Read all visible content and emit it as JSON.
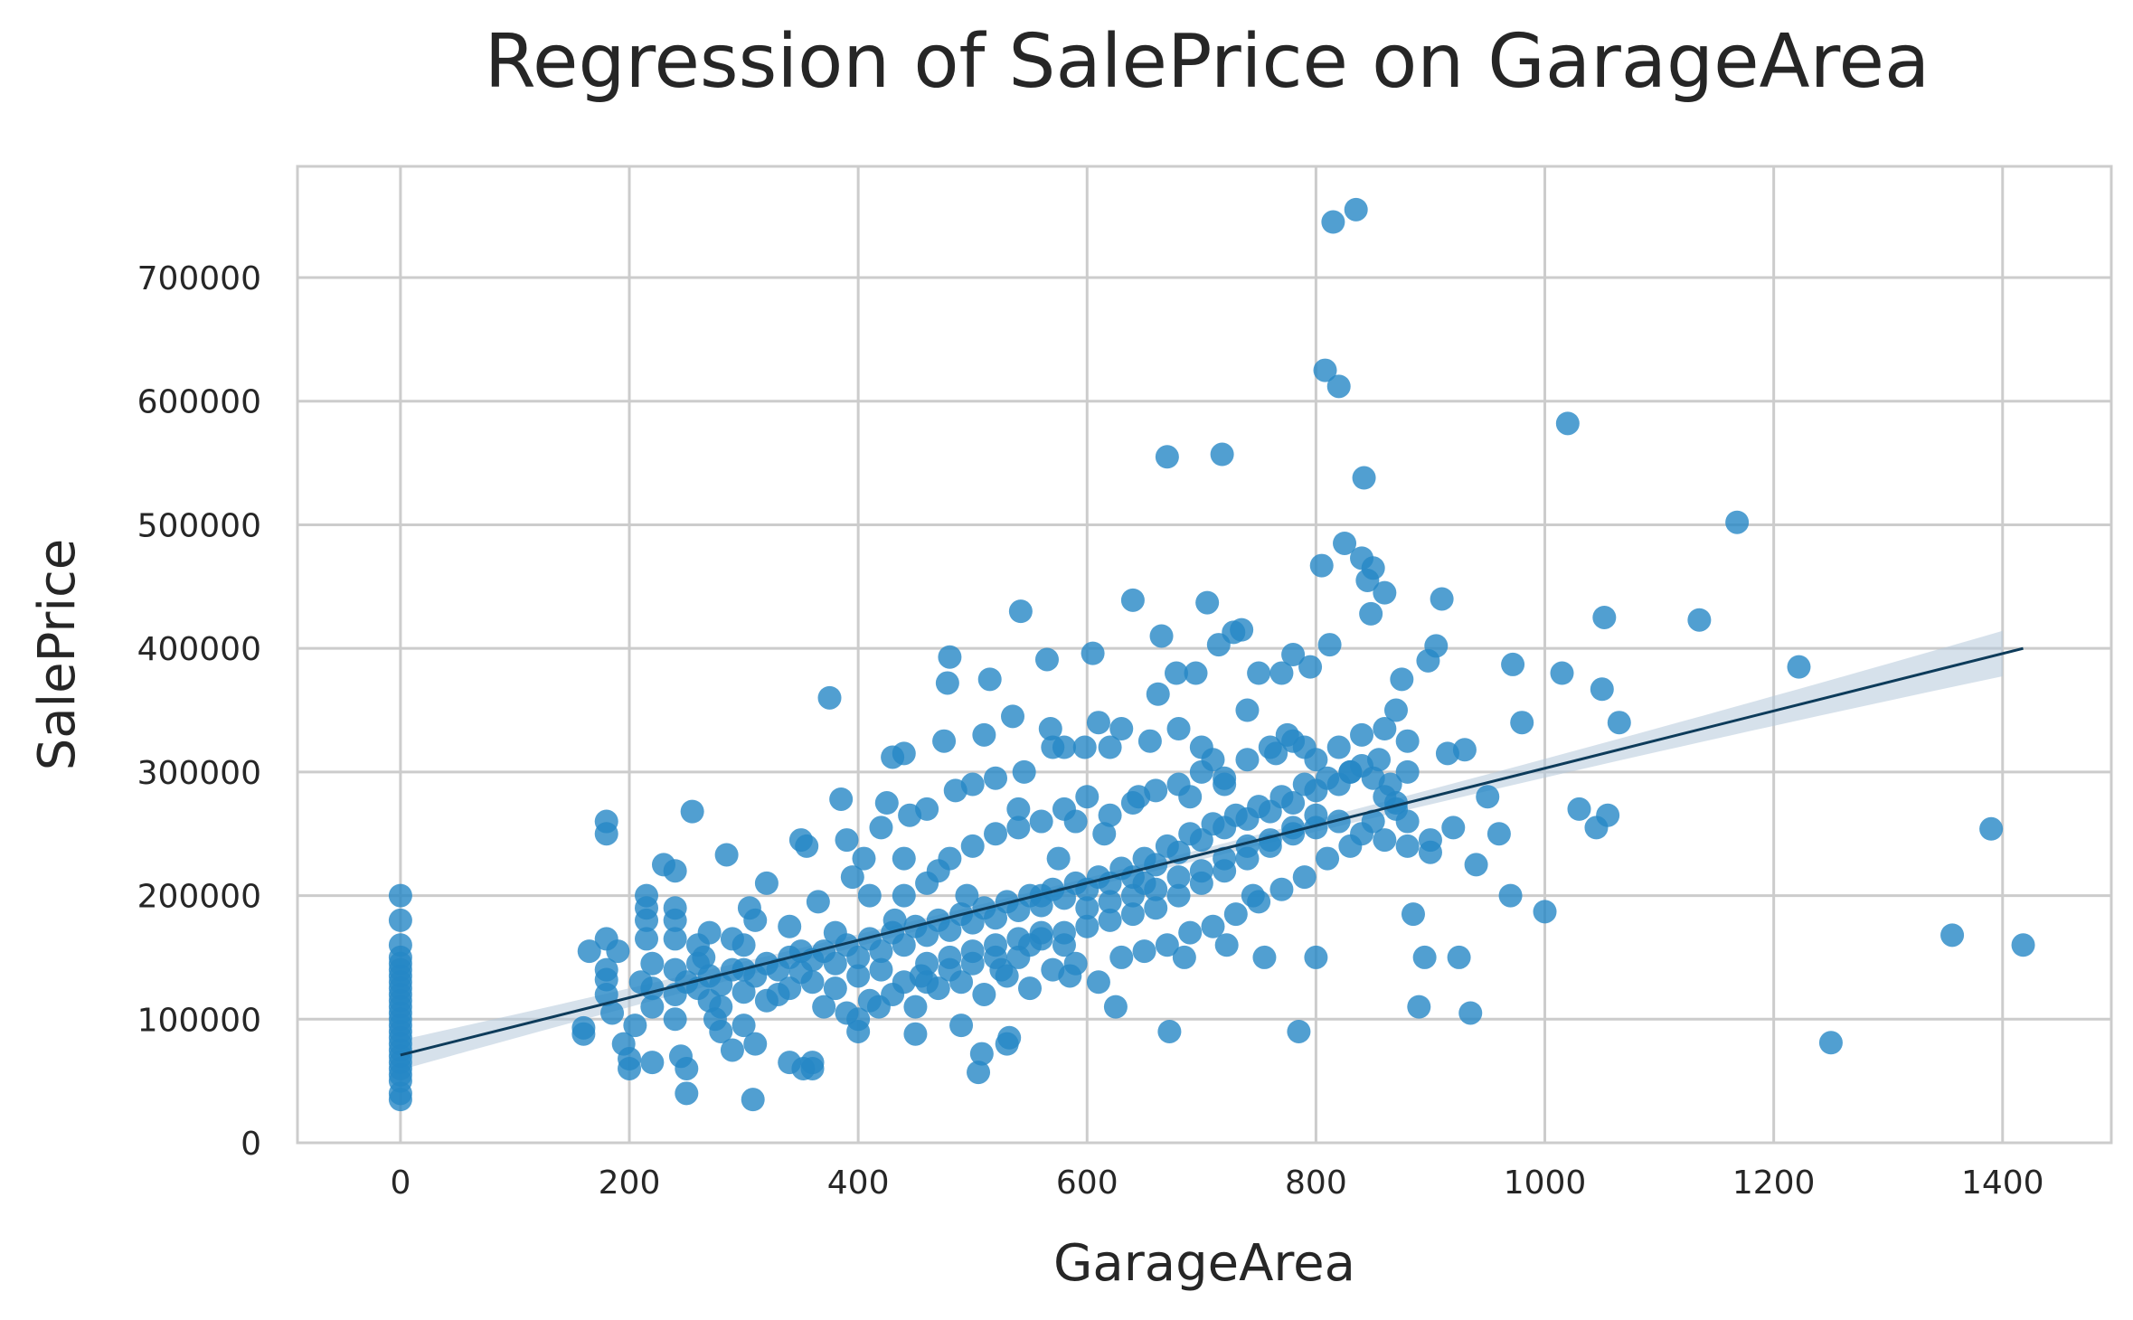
{
  "chart_data": {
    "type": "scatter",
    "title": "Regression of SalePrice on GarageArea",
    "xlabel": "GarageArea",
    "ylabel": "SalePrice",
    "xlim": [
      -90,
      1495
    ],
    "ylim": [
      0,
      790000
    ],
    "xticks": [
      0,
      200,
      400,
      600,
      800,
      1000,
      1200,
      1400
    ],
    "yticks": [
      0,
      100000,
      200000,
      300000,
      400000,
      500000,
      600000,
      700000
    ],
    "grid": true,
    "point_color": "#2587c5",
    "line_color": "#0d3b5a",
    "band_color": "#b4c8da",
    "regression": {
      "x0": 0,
      "y0": 71000,
      "x1": 1418,
      "y1": 400000,
      "ci_halfwidth_end": 19000
    },
    "points": [
      [
        0,
        200000
      ],
      [
        0,
        180000
      ],
      [
        0,
        160000
      ],
      [
        0,
        150000
      ],
      [
        0,
        145000
      ],
      [
        0,
        140000
      ],
      [
        0,
        135000
      ],
      [
        0,
        130000
      ],
      [
        0,
        125000
      ],
      [
        0,
        120000
      ],
      [
        0,
        115000
      ],
      [
        0,
        110000
      ],
      [
        0,
        105000
      ],
      [
        0,
        100000
      ],
      [
        0,
        95000
      ],
      [
        0,
        90000
      ],
      [
        0,
        85000
      ],
      [
        0,
        80000
      ],
      [
        0,
        75000
      ],
      [
        0,
        70000
      ],
      [
        0,
        65000
      ],
      [
        0,
        60000
      ],
      [
        0,
        55000
      ],
      [
        0,
        50000
      ],
      [
        0,
        40000
      ],
      [
        0,
        35000
      ],
      [
        160,
        88000
      ],
      [
        160,
        93000
      ],
      [
        165,
        155000
      ],
      [
        180,
        260000
      ],
      [
        180,
        250000
      ],
      [
        180,
        165000
      ],
      [
        180,
        140000
      ],
      [
        180,
        132000
      ],
      [
        180,
        120000
      ],
      [
        185,
        105000
      ],
      [
        190,
        155000
      ],
      [
        195,
        80000
      ],
      [
        200,
        60000
      ],
      [
        200,
        68000
      ],
      [
        205,
        95000
      ],
      [
        210,
        130000
      ],
      [
        215,
        200000
      ],
      [
        215,
        190000
      ],
      [
        215,
        180000
      ],
      [
        215,
        165000
      ],
      [
        220,
        145000
      ],
      [
        220,
        125000
      ],
      [
        220,
        110000
      ],
      [
        220,
        65000
      ],
      [
        230,
        225000
      ],
      [
        240,
        220000
      ],
      [
        240,
        190000
      ],
      [
        240,
        180000
      ],
      [
        240,
        165000
      ],
      [
        240,
        140000
      ],
      [
        240,
        120000
      ],
      [
        240,
        100000
      ],
      [
        245,
        70000
      ],
      [
        250,
        60000
      ],
      [
        250,
        40000
      ],
      [
        255,
        268000
      ],
      [
        260,
        160000
      ],
      [
        265,
        150000
      ],
      [
        270,
        170000
      ],
      [
        270,
        135000
      ],
      [
        275,
        100000
      ],
      [
        280,
        90000
      ],
      [
        285,
        233000
      ],
      [
        290,
        165000
      ],
      [
        290,
        75000
      ],
      [
        300,
        140000
      ],
      [
        300,
        95000
      ],
      [
        305,
        190000
      ],
      [
        308,
        35000
      ],
      [
        310,
        180000
      ],
      [
        310,
        80000
      ],
      [
        320,
        210000
      ],
      [
        330,
        120000
      ],
      [
        340,
        175000
      ],
      [
        340,
        65000
      ],
      [
        350,
        245000
      ],
      [
        350,
        155000
      ],
      [
        352,
        60000
      ],
      [
        355,
        240000
      ],
      [
        360,
        60000
      ],
      [
        360,
        65000
      ],
      [
        365,
        195000
      ],
      [
        375,
        360000
      ],
      [
        380,
        170000
      ],
      [
        385,
        278000
      ],
      [
        390,
        245000
      ],
      [
        395,
        215000
      ],
      [
        400,
        90000
      ],
      [
        400,
        100000
      ],
      [
        405,
        230000
      ],
      [
        410,
        200000
      ],
      [
        418,
        110000
      ],
      [
        420,
        255000
      ],
      [
        425,
        275000
      ],
      [
        430,
        312000
      ],
      [
        432,
        180000
      ],
      [
        440,
        315000
      ],
      [
        440,
        230000
      ],
      [
        445,
        265000
      ],
      [
        450,
        88000
      ],
      [
        455,
        135000
      ],
      [
        460,
        270000
      ],
      [
        470,
        220000
      ],
      [
        475,
        325000
      ],
      [
        478,
        372000
      ],
      [
        480,
        393000
      ],
      [
        485,
        285000
      ],
      [
        490,
        95000
      ],
      [
        495,
        200000
      ],
      [
        500,
        290000
      ],
      [
        505,
        57000
      ],
      [
        508,
        72000
      ],
      [
        510,
        330000
      ],
      [
        515,
        375000
      ],
      [
        520,
        295000
      ],
      [
        525,
        140000
      ],
      [
        530,
        80000
      ],
      [
        532,
        85000
      ],
      [
        535,
        345000
      ],
      [
        540,
        270000
      ],
      [
        542,
        430000
      ],
      [
        545,
        300000
      ],
      [
        550,
        160000
      ],
      [
        560,
        200000
      ],
      [
        565,
        391000
      ],
      [
        568,
        335000
      ],
      [
        570,
        320000
      ],
      [
        575,
        230000
      ],
      [
        580,
        320000
      ],
      [
        585,
        135000
      ],
      [
        590,
        260000
      ],
      [
        598,
        320000
      ],
      [
        605,
        396000
      ],
      [
        610,
        340000
      ],
      [
        615,
        250000
      ],
      [
        620,
        320000
      ],
      [
        625,
        110000
      ],
      [
        630,
        335000
      ],
      [
        640,
        439000
      ],
      [
        645,
        280000
      ],
      [
        650,
        210000
      ],
      [
        655,
        325000
      ],
      [
        662,
        363000
      ],
      [
        665,
        410000
      ],
      [
        670,
        555000
      ],
      [
        672,
        90000
      ],
      [
        678,
        380000
      ],
      [
        680,
        335000
      ],
      [
        685,
        150000
      ],
      [
        690,
        280000
      ],
      [
        695,
        380000
      ],
      [
        700,
        320000
      ],
      [
        705,
        437000
      ],
      [
        710,
        310000
      ],
      [
        715,
        403000
      ],
      [
        718,
        557000
      ],
      [
        720,
        290000
      ],
      [
        722,
        160000
      ],
      [
        728,
        413000
      ],
      [
        735,
        415000
      ],
      [
        740,
        350000
      ],
      [
        745,
        200000
      ],
      [
        750,
        380000
      ],
      [
        755,
        150000
      ],
      [
        765,
        315000
      ],
      [
        770,
        380000
      ],
      [
        775,
        330000
      ],
      [
        780,
        395000
      ],
      [
        785,
        90000
      ],
      [
        790,
        320000
      ],
      [
        795,
        385000
      ],
      [
        800,
        150000
      ],
      [
        805,
        467000
      ],
      [
        808,
        625000
      ],
      [
        812,
        403000
      ],
      [
        815,
        745000
      ],
      [
        820,
        612000
      ],
      [
        825,
        485000
      ],
      [
        830,
        300000
      ],
      [
        835,
        755000
      ],
      [
        840,
        473000
      ],
      [
        842,
        538000
      ],
      [
        845,
        455000
      ],
      [
        848,
        428000
      ],
      [
        850,
        465000
      ],
      [
        855,
        310000
      ],
      [
        860,
        445000
      ],
      [
        865,
        290000
      ],
      [
        870,
        350000
      ],
      [
        875,
        375000
      ],
      [
        880,
        260000
      ],
      [
        885,
        185000
      ],
      [
        890,
        110000
      ],
      [
        895,
        150000
      ],
      [
        898,
        390000
      ],
      [
        900,
        245000
      ],
      [
        905,
        402000
      ],
      [
        910,
        440000
      ],
      [
        915,
        315000
      ],
      [
        920,
        255000
      ],
      [
        925,
        150000
      ],
      [
        930,
        318000
      ],
      [
        935,
        105000
      ],
      [
        940,
        225000
      ],
      [
        950,
        280000
      ],
      [
        960,
        250000
      ],
      [
        970,
        200000
      ],
      [
        972,
        387000
      ],
      [
        980,
        340000
      ],
      [
        1000,
        187000
      ],
      [
        1015,
        380000
      ],
      [
        1020,
        582000
      ],
      [
        1030,
        270000
      ],
      [
        1045,
        255000
      ],
      [
        1050,
        367000
      ],
      [
        1052,
        425000
      ],
      [
        1055,
        265000
      ],
      [
        1065,
        340000
      ],
      [
        1135,
        423000
      ],
      [
        1168,
        502000
      ],
      [
        1222,
        385000
      ],
      [
        1250,
        81000
      ],
      [
        1356,
        168000
      ],
      [
        1390,
        254000
      ],
      [
        1418,
        160000
      ],
      [
        250,
        130000
      ],
      [
        260,
        125000
      ],
      [
        270,
        115000
      ],
      [
        280,
        128000
      ],
      [
        290,
        140000
      ],
      [
        300,
        122000
      ],
      [
        310,
        135000
      ],
      [
        320,
        145000
      ],
      [
        330,
        140000
      ],
      [
        340,
        150000
      ],
      [
        350,
        138000
      ],
      [
        360,
        148000
      ],
      [
        370,
        155000
      ],
      [
        380,
        145000
      ],
      [
        390,
        160000
      ],
      [
        400,
        150000
      ],
      [
        410,
        165000
      ],
      [
        420,
        155000
      ],
      [
        430,
        170000
      ],
      [
        440,
        160000
      ],
      [
        450,
        175000
      ],
      [
        460,
        168000
      ],
      [
        470,
        180000
      ],
      [
        480,
        172000
      ],
      [
        490,
        185000
      ],
      [
        500,
        178000
      ],
      [
        510,
        190000
      ],
      [
        520,
        182000
      ],
      [
        530,
        195000
      ],
      [
        540,
        188000
      ],
      [
        550,
        200000
      ],
      [
        560,
        192000
      ],
      [
        570,
        205000
      ],
      [
        580,
        198000
      ],
      [
        590,
        210000
      ],
      [
        600,
        205000
      ],
      [
        610,
        215000
      ],
      [
        620,
        210000
      ],
      [
        630,
        222000
      ],
      [
        640,
        215000
      ],
      [
        650,
        230000
      ],
      [
        660,
        225000
      ],
      [
        670,
        240000
      ],
      [
        680,
        235000
      ],
      [
        690,
        250000
      ],
      [
        700,
        245000
      ],
      [
        710,
        258000
      ],
      [
        720,
        255000
      ],
      [
        730,
        265000
      ],
      [
        740,
        262000
      ],
      [
        750,
        272000
      ],
      [
        760,
        268000
      ],
      [
        770,
        280000
      ],
      [
        780,
        275000
      ],
      [
        790,
        290000
      ],
      [
        800,
        285000
      ],
      [
        810,
        295000
      ],
      [
        820,
        290000
      ],
      [
        830,
        300000
      ],
      [
        840,
        305000
      ],
      [
        850,
        295000
      ],
      [
        860,
        280000
      ],
      [
        870,
        270000
      ],
      [
        880,
        300000
      ],
      [
        260,
        145000
      ],
      [
        280,
        110000
      ],
      [
        300,
        160000
      ],
      [
        320,
        115000
      ],
      [
        340,
        125000
      ],
      [
        360,
        130000
      ],
      [
        380,
        125000
      ],
      [
        400,
        135000
      ],
      [
        420,
        140000
      ],
      [
        440,
        130000
      ],
      [
        460,
        145000
      ],
      [
        480,
        150000
      ],
      [
        500,
        155000
      ],
      [
        520,
        160000
      ],
      [
        540,
        150000
      ],
      [
        560,
        165000
      ],
      [
        580,
        170000
      ],
      [
        600,
        175000
      ],
      [
        620,
        180000
      ],
      [
        640,
        185000
      ],
      [
        660,
        190000
      ],
      [
        680,
        200000
      ],
      [
        700,
        210000
      ],
      [
        720,
        220000
      ],
      [
        740,
        230000
      ],
      [
        760,
        240000
      ],
      [
        780,
        250000
      ],
      [
        800,
        255000
      ],
      [
        820,
        260000
      ],
      [
        840,
        250000
      ],
      [
        860,
        245000
      ],
      [
        880,
        240000
      ],
      [
        900,
        235000
      ],
      [
        370,
        110000
      ],
      [
        390,
        105000
      ],
      [
        410,
        115000
      ],
      [
        430,
        120000
      ],
      [
        450,
        110000
      ],
      [
        470,
        125000
      ],
      [
        490,
        130000
      ],
      [
        510,
        120000
      ],
      [
        530,
        135000
      ],
      [
        550,
        125000
      ],
      [
        570,
        140000
      ],
      [
        590,
        145000
      ],
      [
        610,
        130000
      ],
      [
        630,
        150000
      ],
      [
        650,
        155000
      ],
      [
        670,
        160000
      ],
      [
        690,
        170000
      ],
      [
        710,
        175000
      ],
      [
        730,
        185000
      ],
      [
        750,
        195000
      ],
      [
        770,
        205000
      ],
      [
        790,
        215000
      ],
      [
        810,
        230000
      ],
      [
        830,
        240000
      ],
      [
        850,
        260000
      ],
      [
        870,
        275000
      ],
      [
        440,
        200000
      ],
      [
        460,
        210000
      ],
      [
        480,
        230000
      ],
      [
        500,
        240000
      ],
      [
        520,
        250000
      ],
      [
        540,
        255000
      ],
      [
        560,
        260000
      ],
      [
        580,
        270000
      ],
      [
        600,
        280000
      ],
      [
        620,
        265000
      ],
      [
        640,
        275000
      ],
      [
        660,
        285000
      ],
      [
        680,
        290000
      ],
      [
        700,
        300000
      ],
      [
        720,
        295000
      ],
      [
        740,
        310000
      ],
      [
        760,
        320000
      ],
      [
        780,
        325000
      ],
      [
        800,
        310000
      ],
      [
        820,
        320000
      ],
      [
        840,
        330000
      ],
      [
        860,
        335000
      ],
      [
        880,
        325000
      ],
      [
        460,
        130000
      ],
      [
        480,
        140000
      ],
      [
        500,
        145000
      ],
      [
        520,
        150000
      ],
      [
        540,
        165000
      ],
      [
        560,
        170000
      ],
      [
        580,
        160000
      ],
      [
        600,
        190000
      ],
      [
        620,
        195000
      ],
      [
        640,
        200000
      ],
      [
        660,
        205000
      ],
      [
        680,
        215000
      ],
      [
        700,
        220000
      ],
      [
        720,
        230000
      ],
      [
        740,
        240000
      ],
      [
        760,
        245000
      ],
      [
        780,
        255000
      ],
      [
        800,
        265000
      ]
    ]
  }
}
